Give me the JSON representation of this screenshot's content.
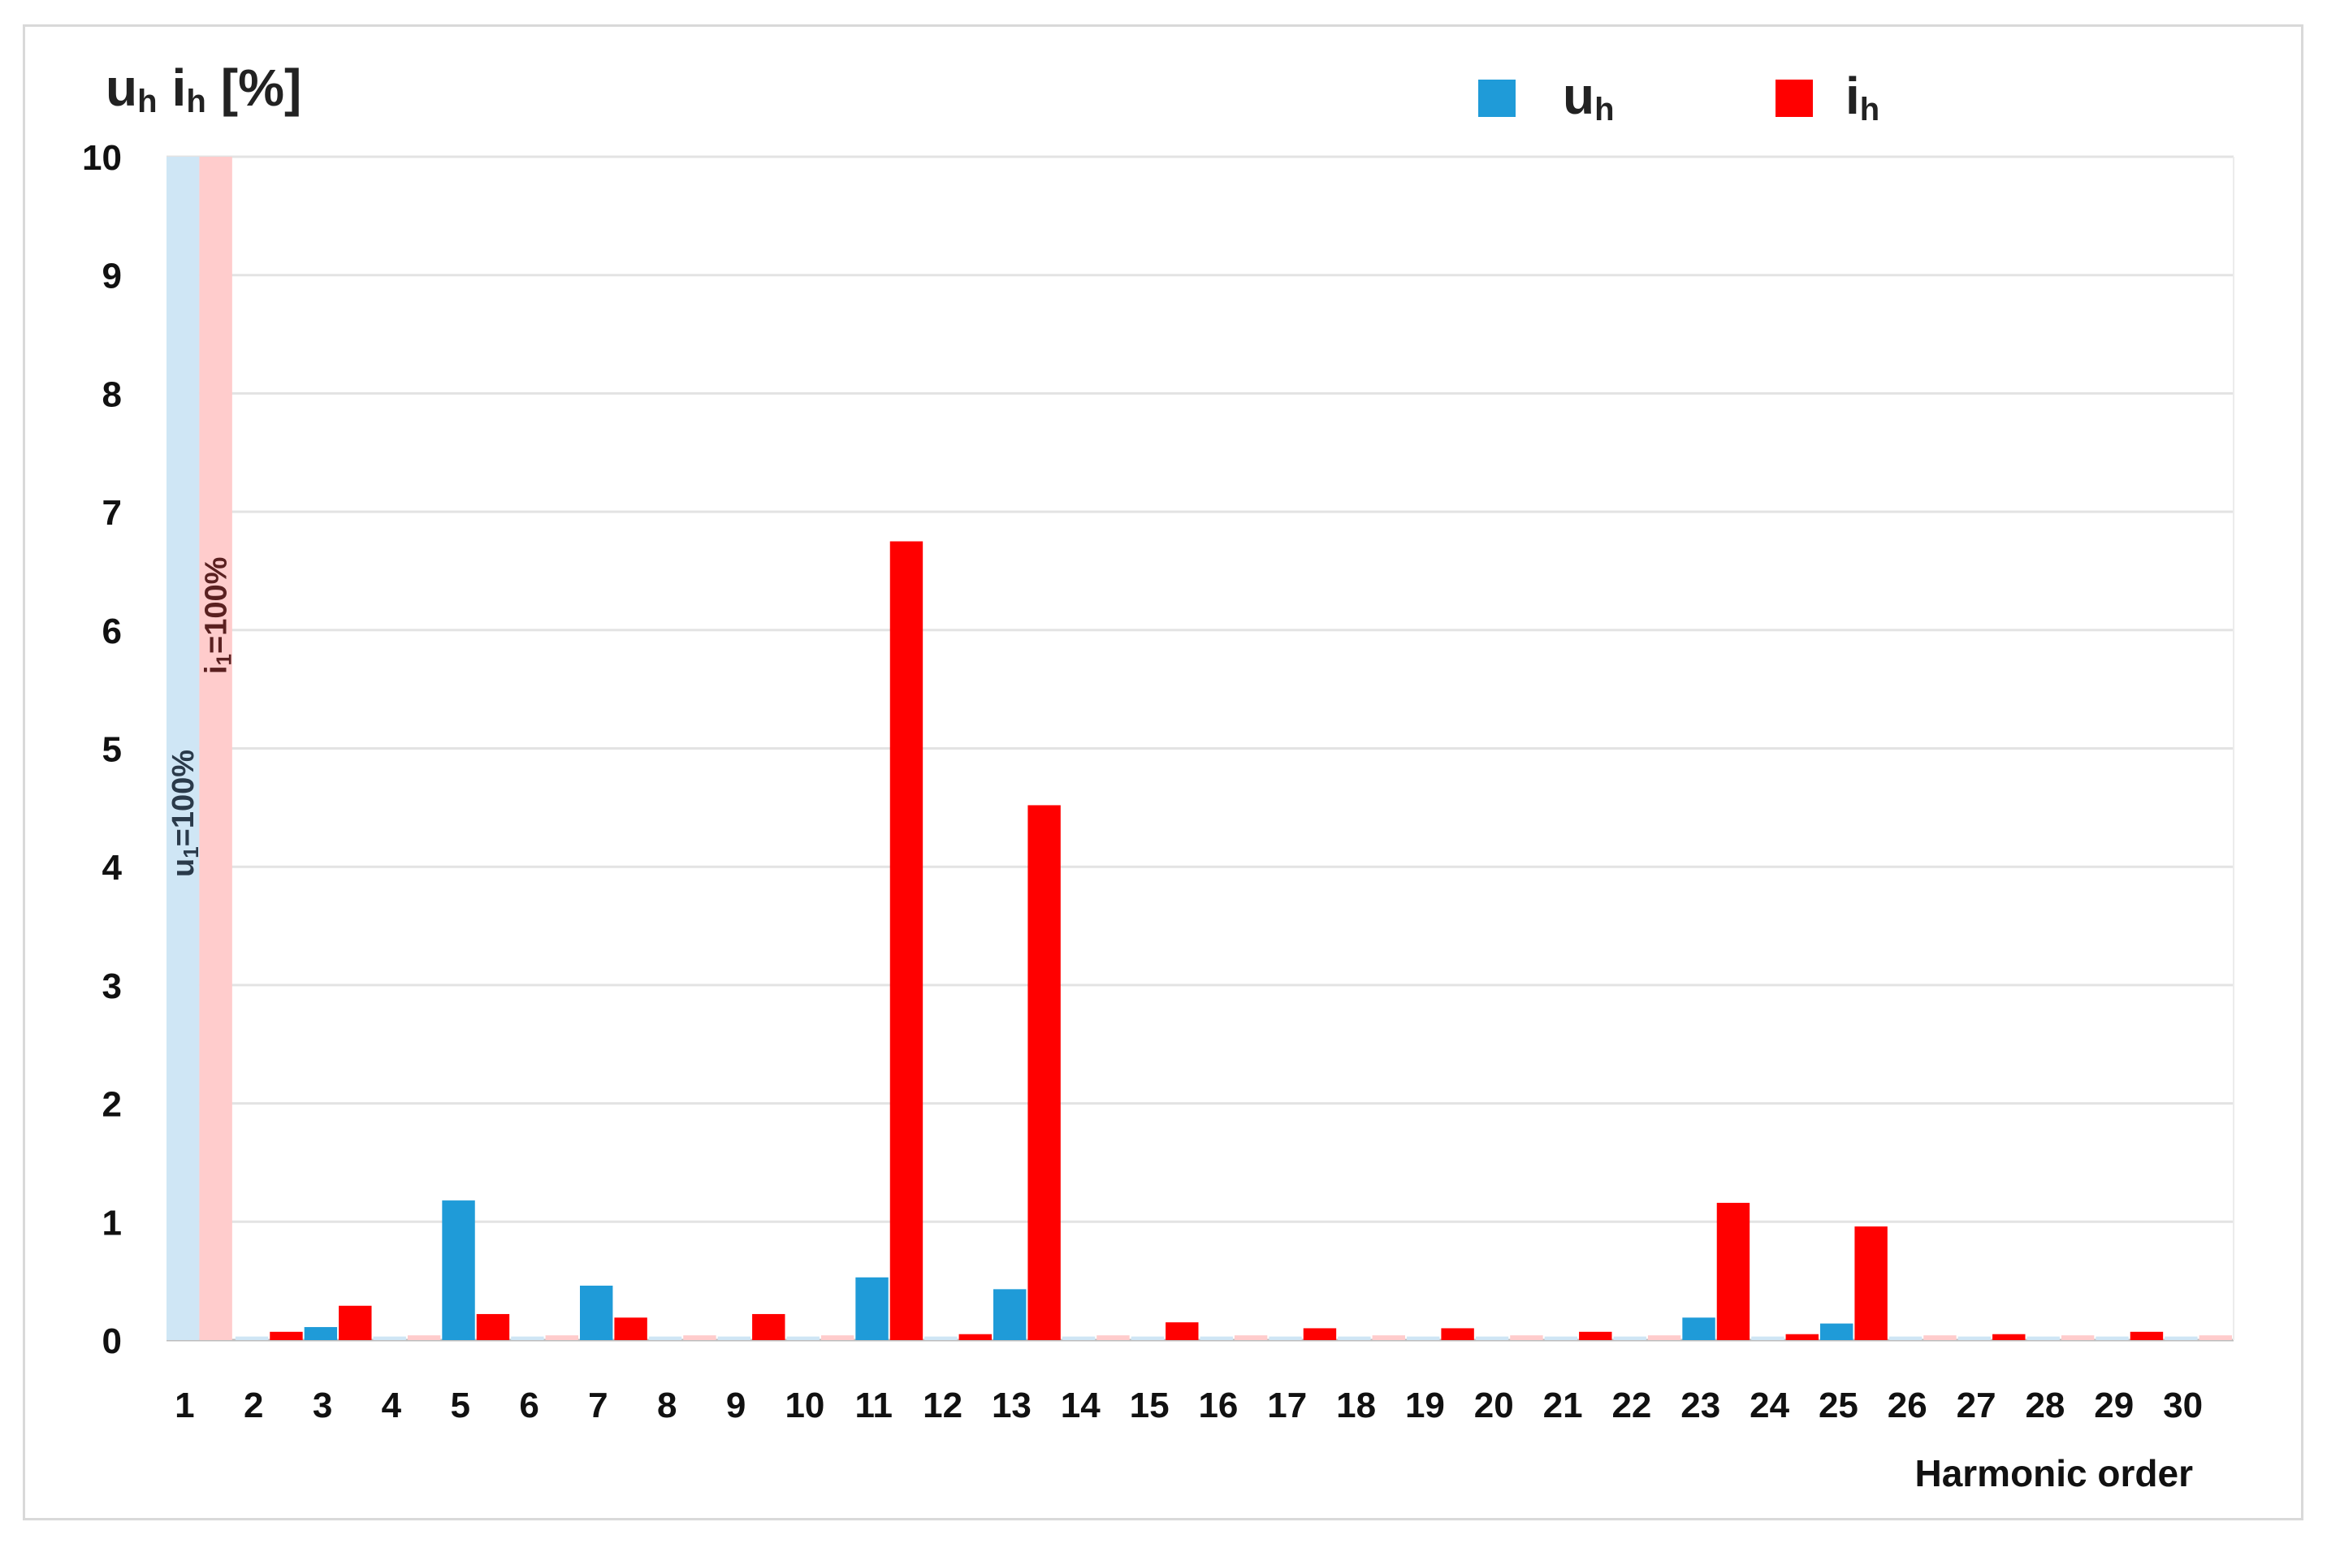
{
  "chart_data": {
    "type": "bar",
    "ylabel_main_u": "u",
    "ylabel_sub_u": "h",
    "ylabel_main_i": "i",
    "ylabel_sub_i": "h",
    "ylabel_unit": "[%]",
    "xlabel": "Harmonic order",
    "ylim": [
      0,
      10
    ],
    "yticks": [
      "0",
      "1",
      "2",
      "3",
      "4",
      "5",
      "6",
      "7",
      "8",
      "9",
      "10"
    ],
    "categories": [
      "1",
      "2",
      "3",
      "4",
      "5",
      "6",
      "7",
      "8",
      "9",
      "10",
      "11",
      "12",
      "13",
      "14",
      "15",
      "16",
      "17",
      "18",
      "19",
      "20",
      "21",
      "22",
      "23",
      "24",
      "25",
      "26",
      "27",
      "28",
      "29",
      "30"
    ],
    "grid": true,
    "legend_position": "top-right",
    "series": [
      {
        "name_main": "u",
        "name_sub": "h",
        "color": "#1f9bd8",
        "light_color": "#cfe6f5",
        "values": [
          null,
          0.03,
          0.11,
          0.03,
          1.18,
          0.03,
          0.46,
          0.03,
          0.03,
          0.03,
          0.53,
          0.03,
          0.43,
          0.03,
          0.03,
          0.03,
          0.03,
          0.03,
          0.03,
          0.03,
          0.03,
          0.03,
          0.19,
          0.03,
          0.14,
          0.03,
          0.03,
          0.03,
          0.03,
          0.03
        ]
      },
      {
        "name_main": "i",
        "name_sub": "h",
        "color": "#ff0000",
        "light_color": "#ffcccc",
        "values": [
          null,
          0.07,
          0.29,
          0.04,
          0.22,
          0.04,
          0.19,
          0.04,
          0.22,
          0.04,
          6.75,
          0.05,
          4.52,
          0.04,
          0.15,
          0.04,
          0.1,
          0.04,
          0.1,
          0.04,
          0.07,
          0.04,
          1.16,
          0.05,
          0.96,
          0.04,
          0.05,
          0.04,
          0.07,
          0.04
        ]
      }
    ],
    "annotations": [
      {
        "main": "u",
        "sub": "1",
        "suffix": "=100%",
        "series": 0
      },
      {
        "main": "i",
        "sub": "1",
        "suffix": "=100%",
        "series": 1
      }
    ]
  }
}
